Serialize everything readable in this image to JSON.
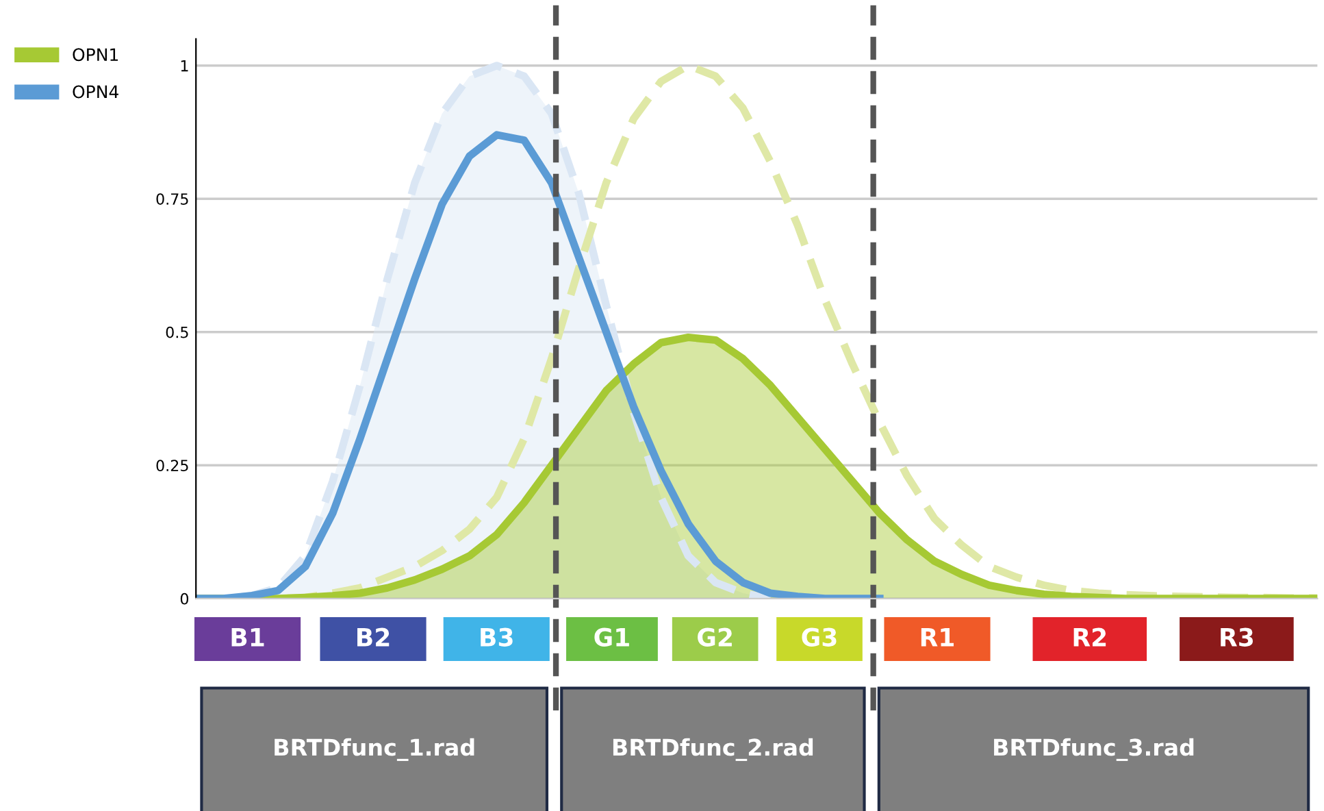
{
  "chart_data": {
    "type": "area",
    "categories": [
      null,
      null,
      null,
      null,
      null,
      null,
      null,
      null,
      null,
      null,
      null,
      null,
      null,
      null,
      null,
      null,
      null,
      null,
      null,
      null,
      null,
      null,
      null,
      null,
      null,
      null,
      null,
      null,
      null,
      null,
      null,
      null,
      null,
      null,
      null,
      null,
      null,
      null,
      null,
      null,
      null,
      null
    ],
    "colors": [
      "#6a3d9a",
      "#3f51a5",
      "#40b4e8",
      "#6cbf44",
      "#9ccc4a",
      "#c8d92a",
      "#f05a28",
      "#e2232a",
      "#8b1a1a"
    ],
    "ylim": [
      0,
      1.05
    ],
    "yticks": [
      0,
      0.25,
      0.5,
      0.75,
      1
    ],
    "tick_labels": "y",
    "grid": "y",
    "legend": "top left",
    "marker": "none",
    "series": [
      {
        "line_style": "dashed",
        "color": "#dae6f4",
        "values": [
          0,
          0,
          0.005,
          0.02,
          0.08,
          0.22,
          0.4,
          0.6,
          0.78,
          0.91,
          0.98,
          1.0,
          0.98,
          0.91,
          0.76,
          0.55,
          0.35,
          0.19,
          0.08,
          0.03,
          0.01,
          0,
          null,
          null,
          null,
          null,
          null,
          null,
          null,
          null,
          null,
          null,
          null,
          null,
          null,
          null,
          null,
          null,
          null,
          null,
          null,
          null
        ]
      },
      {
        "type": "line",
        "line_style": "dashed",
        "color": "#dfe8a6",
        "values": [
          0,
          0,
          0,
          0,
          0.002,
          0.01,
          0.02,
          0.04,
          0.06,
          0.09,
          0.13,
          0.19,
          0.3,
          0.45,
          0.62,
          0.78,
          0.9,
          0.97,
          1.0,
          0.98,
          0.92,
          0.82,
          0.7,
          0.56,
          0.44,
          0.33,
          0.23,
          0.15,
          0.1,
          0.06,
          0.04,
          0.025,
          0.015,
          0.01,
          0.007,
          0.005,
          0.004,
          0.003,
          0.002,
          0.002,
          0.001,
          0.001
        ]
      },
      {
        "name": "OPN1",
        "line_style": "solid",
        "color": "#a6c934",
        "values": [
          0,
          0,
          0,
          0,
          0.002,
          0.005,
          0.01,
          0.02,
          0.035,
          0.055,
          0.08,
          0.12,
          0.18,
          0.25,
          0.32,
          0.39,
          0.44,
          0.48,
          0.49,
          0.485,
          0.45,
          0.4,
          0.34,
          0.28,
          0.22,
          0.16,
          0.11,
          0.07,
          0.045,
          0.025,
          0.015,
          0.008,
          0.004,
          0.002,
          0,
          0,
          0,
          0,
          0,
          0,
          0,
          0
        ]
      },
      {
        "type": "line",
        "name": "OPN4",
        "line_style": "solid",
        "color": "#5b9bd5",
        "values": [
          0,
          0,
          0.005,
          0.015,
          0.06,
          0.16,
          0.3,
          0.45,
          0.6,
          0.74,
          0.83,
          0.87,
          0.86,
          0.78,
          0.64,
          0.5,
          0.36,
          0.24,
          0.14,
          0.07,
          0.03,
          0.01,
          0.004,
          0,
          0,
          0,
          null,
          null,
          null,
          null,
          null,
          null,
          null,
          null,
          null,
          null,
          null,
          null,
          null,
          null,
          null,
          null
        ]
      }
    ],
    "annotations": [
      "B1",
      "B2",
      "B3",
      "G1",
      "G2",
      "G3",
      "R1",
      "R2",
      "R3",
      "BRTDfunc_1.rad",
      "BRTDfunc_2.rad",
      "BRTDfunc_3.rad"
    ]
  }
}
